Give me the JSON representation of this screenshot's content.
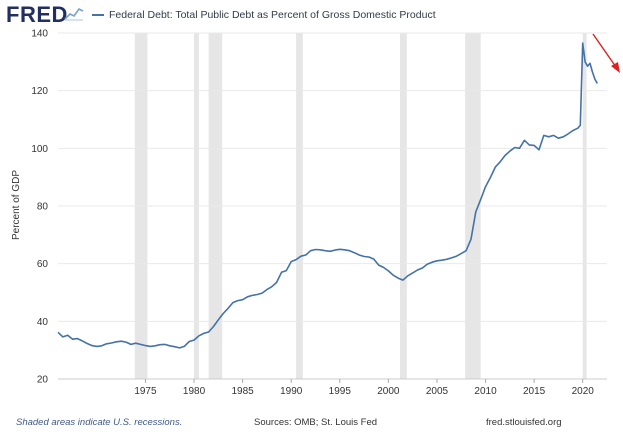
{
  "header": {
    "logo_text": "FRED",
    "logo_icon": "fred-chart-icon",
    "legend_label": "Federal Debt: Total Public Debt as Percent of Gross Domestic Product"
  },
  "footer": {
    "recession_note": "Shaded areas indicate U.S. recessions.",
    "sources": "Sources: OMB; St. Louis Fed",
    "url": "fred.stlouisfed.org"
  },
  "colors": {
    "line": "#4572a7",
    "recession": "#e6e6e6",
    "grid": "#e9e9e9",
    "annotation_arrow": "#e02020"
  },
  "chart_data": {
    "type": "line",
    "title": "",
    "xlabel": "",
    "ylabel": "Percent of GDP",
    "xlim": [
      1966.0,
      2022.5
    ],
    "ylim": [
      20,
      140
    ],
    "yticks": [
      20,
      40,
      60,
      80,
      100,
      120,
      140
    ],
    "xticks": [
      1975,
      1980,
      1985,
      1990,
      1995,
      2000,
      2005,
      2010,
      2015,
      2020
    ],
    "grid": "horizontal",
    "legend": "top",
    "recessions": [
      [
        1973.9,
        1975.2
      ],
      [
        1980.0,
        1980.5
      ],
      [
        1981.5,
        1982.9
      ],
      [
        1990.5,
        1991.2
      ],
      [
        2001.2,
        2001.9
      ],
      [
        2007.9,
        2009.5
      ],
      [
        2020.0,
        2020.4
      ]
    ],
    "annotation": "red downward arrow at top right",
    "series": [
      {
        "name": "",
        "x": [
          1966.0,
          1966.5,
          1967.0,
          1967.5,
          1968.0,
          1968.5,
          1969.0,
          1969.5,
          1970.0,
          1970.5,
          1971.0,
          1971.5,
          1972.0,
          1972.5,
          1973.0,
          1973.5,
          1974.0,
          1974.5,
          1975.0,
          1975.5,
          1976.0,
          1976.5,
          1977.0,
          1977.5,
          1978.0,
          1978.5,
          1979.0,
          1979.5,
          1980.0,
          1980.5,
          1981.0,
          1981.5,
          1982.0,
          1982.5,
          1983.0,
          1983.5,
          1984.0,
          1984.5,
          1985.0,
          1985.5,
          1986.0,
          1986.5,
          1987.0,
          1987.5,
          1988.0,
          1988.5,
          1989.0,
          1989.5,
          1990.0,
          1990.5,
          1991.0,
          1991.5,
          1992.0,
          1992.5,
          1993.0,
          1993.5,
          1994.0,
          1994.5,
          1995.0,
          1995.5,
          1996.0,
          1996.5,
          1997.0,
          1997.5,
          1998.0,
          1998.5,
          1999.0,
          1999.5,
          2000.0,
          2000.5,
          2001.0,
          2001.5,
          2002.0,
          2002.5,
          2003.0,
          2003.5,
          2004.0,
          2004.5,
          2005.0,
          2005.5,
          2006.0,
          2006.5,
          2007.0,
          2007.5,
          2008.0,
          2008.5,
          2009.0,
          2009.5,
          2010.0,
          2010.5,
          2011.0,
          2011.5,
          2012.0,
          2012.5,
          2013.0,
          2013.5,
          2014.0,
          2014.5,
          2015.0,
          2015.5,
          2016.0,
          2016.5,
          2017.0,
          2017.5,
          2018.0,
          2018.5,
          2019.0,
          2019.5,
          2019.75,
          2020.0,
          2020.25,
          2020.5,
          2020.75,
          2021.0,
          2021.25,
          2021.5
        ],
        "values": [
          36.2,
          34.6,
          35.2,
          33.8,
          34.0,
          33.2,
          32.3,
          31.6,
          31.3,
          31.5,
          32.2,
          32.5,
          32.9,
          33.1,
          32.8,
          32.0,
          32.4,
          32.0,
          31.6,
          31.3,
          31.5,
          31.9,
          32.0,
          31.5,
          31.2,
          30.8,
          31.3,
          33.0,
          33.5,
          35.0,
          35.8,
          36.3,
          38.2,
          40.5,
          42.7,
          44.5,
          46.5,
          47.2,
          47.5,
          48.5,
          49.0,
          49.3,
          49.8,
          51.0,
          52.0,
          53.5,
          57.0,
          57.6,
          60.7,
          61.4,
          62.6,
          63.0,
          64.5,
          64.9,
          64.8,
          64.5,
          64.3,
          64.7,
          65.0,
          64.8,
          64.5,
          63.8,
          63.0,
          62.5,
          62.3,
          61.6,
          59.5,
          58.7,
          57.5,
          56.0,
          55.0,
          54.3,
          55.8,
          56.8,
          57.8,
          58.5,
          59.8,
          60.5,
          61.0,
          61.2,
          61.5,
          62.0,
          62.6,
          63.5,
          64.5,
          68.5,
          78.0,
          82.3,
          86.7,
          89.9,
          93.5,
          95.3,
          97.5,
          99.0,
          100.3,
          100.0,
          102.8,
          101.2,
          101.0,
          99.5,
          104.5,
          104.0,
          104.5,
          103.5,
          104.0,
          105.0,
          106.2,
          107.0,
          108.0,
          136.5,
          130.0,
          128.5,
          129.5,
          126.5,
          124.0,
          122.5
        ]
      }
    ]
  }
}
